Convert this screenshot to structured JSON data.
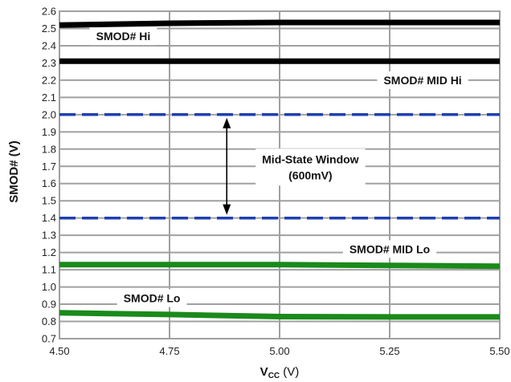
{
  "chart_data": {
    "type": "line",
    "xlabel_main": "V",
    "xlabel_sub": "CC",
    "xlabel_unit": " (V)",
    "ylabel": "SMOD# (V)",
    "xlim": [
      4.5,
      5.5
    ],
    "ylim": [
      0.7,
      2.6
    ],
    "x_ticks": [
      "4.50",
      "4.75",
      "5.00",
      "5.25",
      "5.50"
    ],
    "y_ticks": [
      "0.7",
      "0.8",
      "0.9",
      "1.0",
      "1.1",
      "1.2",
      "1.3",
      "1.4",
      "1.5",
      "1.6",
      "1.7",
      "1.8",
      "1.9",
      "2.0",
      "2.1",
      "2.2",
      "2.3",
      "2.4",
      "2.5",
      "2.6"
    ],
    "grid": true,
    "series": [
      {
        "label": "SMOD# Hi",
        "color": "#000000",
        "style": "solid",
        "x": [
          4.5,
          4.75,
          5.0,
          5.25,
          5.5
        ],
        "y": [
          2.52,
          2.53,
          2.535,
          2.535,
          2.535
        ]
      },
      {
        "label": "SMOD# MID Hi",
        "color": "#000000",
        "style": "solid",
        "x": [
          4.5,
          4.75,
          5.0,
          5.25,
          5.5
        ],
        "y": [
          2.31,
          2.31,
          2.31,
          2.31,
          2.31
        ]
      },
      {
        "label": "",
        "color": "#1f3fb0",
        "style": "dashed",
        "x": [
          4.5,
          5.5
        ],
        "y": [
          2.0,
          2.0
        ]
      },
      {
        "label": "",
        "color": "#1f3fb0",
        "style": "dashed",
        "x": [
          4.5,
          5.5
        ],
        "y": [
          1.4,
          1.4
        ]
      },
      {
        "label": "SMOD# MID Lo",
        "color": "#1a8a1a",
        "style": "solid",
        "x": [
          4.5,
          4.75,
          5.0,
          5.25,
          5.5
        ],
        "y": [
          1.13,
          1.13,
          1.13,
          1.125,
          1.12
        ]
      },
      {
        "label": "SMOD# Lo",
        "color": "#1a8a1a",
        "style": "solid",
        "x": [
          4.5,
          4.75,
          5.0,
          5.25,
          5.5
        ],
        "y": [
          0.85,
          0.84,
          0.828,
          0.826,
          0.826
        ]
      }
    ],
    "annotations": [
      {
        "text": "SMOD# Hi",
        "x": 4.645,
        "y": 2.455
      },
      {
        "text": "SMOD# MID Hi",
        "x": 5.325,
        "y": 2.2
      },
      {
        "text": "SMOD# MID Lo",
        "x": 5.25,
        "y": 1.22
      },
      {
        "text": "SMOD# Lo",
        "x": 4.71,
        "y": 0.935
      }
    ],
    "window": {
      "line1": "Mid-State Window",
      "line2": "(600mV)",
      "x": 4.88,
      "y_top": 2.0,
      "y_bottom": 1.4,
      "label_x": 5.07,
      "label_y": 1.7
    },
    "colors": {
      "grid": "#a0a0a0",
      "hi": "#000000",
      "lo": "#1a8a1a",
      "window": "#1f3fb0"
    }
  }
}
